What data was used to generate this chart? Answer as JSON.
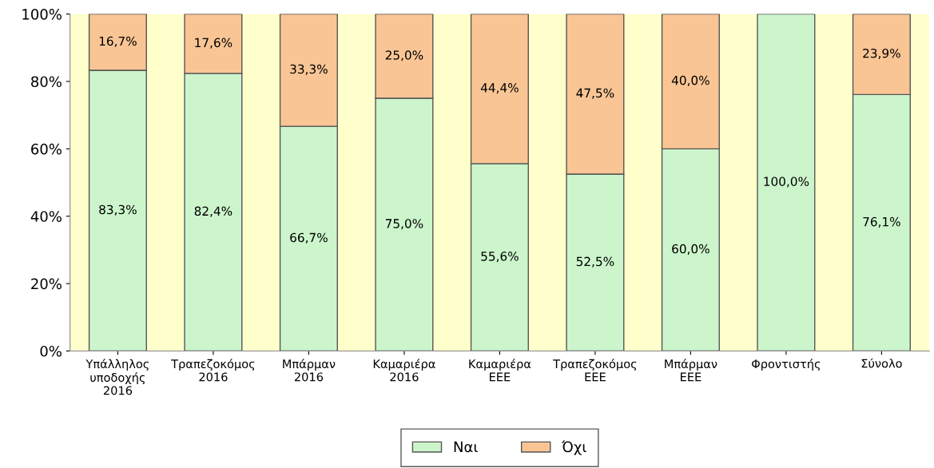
{
  "chart_data": {
    "type": "bar",
    "stacked": true,
    "categories": [
      "Υπάλληλος\nυποδοχής\n2016",
      "Τραπεζοκόμος\n2016",
      "Μπάρμαν\n2016",
      "Καμαριέρα\n2016",
      "Καμαριέρα\nΕΕΕ",
      "Τραπεζοκόμος\nΕΕΕ",
      "Μπάρμαν\nΕΕΕ",
      "Φροντιστής",
      "Σύνολο"
    ],
    "series": [
      {
        "name": "Ναι",
        "color": "#ccf5cc",
        "values": [
          83.3,
          82.4,
          66.7,
          75.0,
          55.6,
          52.5,
          60.0,
          100.0,
          76.1
        ],
        "value_labels": [
          "83,3%",
          "82,4%",
          "66,7%",
          "75,0%",
          "55,6%",
          "52,5%",
          "60,0%",
          "100,0%",
          "76,1%"
        ]
      },
      {
        "name": "Όχι",
        "color": "#f9c594",
        "values": [
          16.7,
          17.6,
          33.3,
          25.0,
          44.4,
          47.5,
          40.0,
          0,
          23.9
        ],
        "value_labels": [
          "16,7%",
          "17,6%",
          "33,3%",
          "25,0%",
          "44,4%",
          "47,5%",
          "40,0%",
          null,
          "23,9%"
        ]
      }
    ],
    "ylim": [
      0,
      100
    ],
    "yticks": [
      {
        "value": 0,
        "label": "0%"
      },
      {
        "value": 20,
        "label": "20%"
      },
      {
        "value": 40,
        "label": "40%"
      },
      {
        "value": 60,
        "label": "60%"
      },
      {
        "value": 80,
        "label": "80%"
      },
      {
        "value": 100,
        "label": "100%"
      }
    ],
    "bands": [
      {
        "axis": "y",
        "from": 0,
        "to": 100,
        "color": "#ffffcc"
      }
    ],
    "legend": "bottom"
  }
}
